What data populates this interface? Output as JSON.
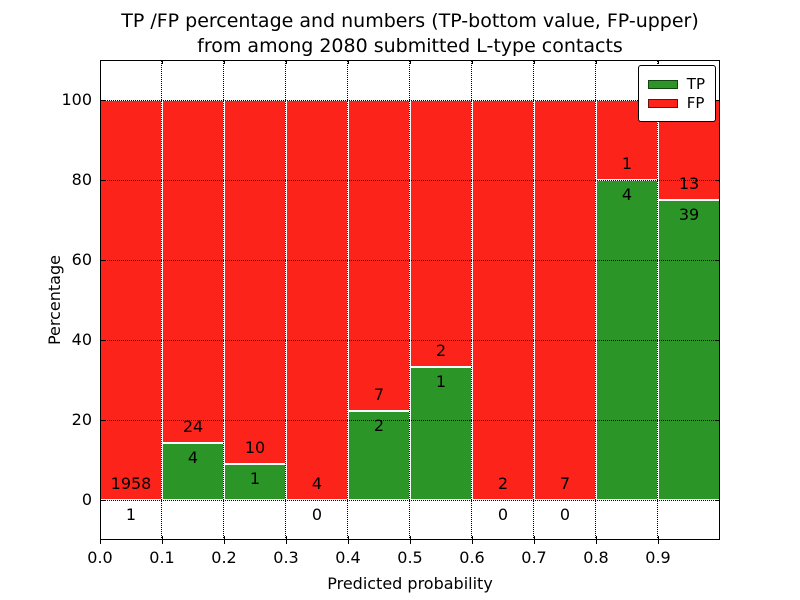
{
  "title": {
    "line1": "TP /FP percentage and numbers (TP-bottom value, FP-upper)",
    "line2": "from among 2080 submitted L-type contacts"
  },
  "legend": {
    "items": [
      {
        "label": "TP",
        "color": "#2c9528"
      },
      {
        "label": "FP",
        "color": "#fb231a"
      }
    ]
  },
  "axes": {
    "xlabel": "Predicted probability",
    "ylabel": "Percentage",
    "x_tick_labels": [
      "0.0",
      "0.1",
      "0.2",
      "0.3",
      "0.4",
      "0.5",
      "0.6",
      "0.7",
      "0.8",
      "0.9"
    ],
    "y_tick_labels": [
      "0",
      "20",
      "40",
      "60",
      "80",
      "100"
    ]
  },
  "chart_data": {
    "type": "bar",
    "stacked": true,
    "normalized_percent": true,
    "title": "TP /FP percentage and numbers (TP-bottom value, FP-upper) from among 2080 submitted L-type contacts",
    "xlabel": "Predicted probability",
    "ylabel": "Percentage",
    "total_submitted_contacts": 2080,
    "categories": [
      "0.0-0.1",
      "0.1-0.2",
      "0.2-0.3",
      "0.3-0.4",
      "0.4-0.5",
      "0.5-0.6",
      "0.6-0.7",
      "0.7-0.8",
      "0.8-0.9",
      "0.9-1.0"
    ],
    "series": [
      {
        "name": "TP",
        "color": "#2c9528",
        "counts": [
          1,
          4,
          1,
          0,
          2,
          1,
          0,
          0,
          4,
          39
        ],
        "percent": [
          0.05,
          14.29,
          9.09,
          0,
          22.22,
          33.33,
          0,
          0,
          80,
          75
        ]
      },
      {
        "name": "FP",
        "color": "#fb231a",
        "counts": [
          1958,
          24,
          10,
          4,
          7,
          2,
          2,
          7,
          1,
          13
        ],
        "percent": [
          99.95,
          85.71,
          90.91,
          100,
          77.78,
          66.67,
          100,
          100,
          20,
          25
        ]
      }
    ],
    "x_ticks": [
      0.0,
      0.1,
      0.2,
      0.3,
      0.4,
      0.5,
      0.6,
      0.7,
      0.8,
      0.9
    ],
    "y_ticks": [
      0,
      20,
      40,
      60,
      80,
      100
    ],
    "xlim": [
      0.0,
      1.0
    ],
    "ylim": [
      -10,
      110
    ],
    "grid": true,
    "grid_style": "dotted",
    "bar_edge_color": "#ffffff",
    "legend_position": "upper right",
    "annotation_note": "TP count below green bar top, FP count above green bar top"
  }
}
